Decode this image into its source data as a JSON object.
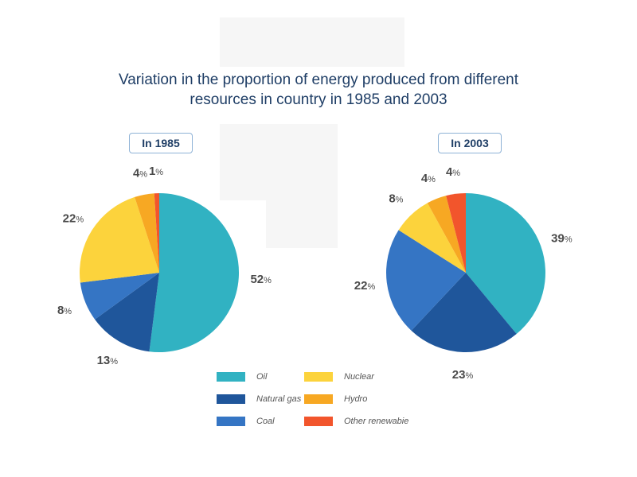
{
  "title": "Variation in the proportion of energy produced from different\nresources in country in 1985 and 2003",
  "chart_data": [
    {
      "type": "pie",
      "title": "In 1985",
      "categories": [
        "Oil",
        "Natural gas",
        "Coal",
        "Nuclear",
        "Hydro",
        "Other renewabie"
      ],
      "values": [
        52,
        13,
        8,
        22,
        4,
        1
      ],
      "unit": "%"
    },
    {
      "type": "pie",
      "title": "In 2003",
      "categories": [
        "Oil",
        "Natural gas",
        "Coal",
        "Nuclear",
        "Hydro",
        "Other renewabie"
      ],
      "values": [
        39,
        23,
        22,
        8,
        4,
        4
      ],
      "unit": "%"
    }
  ],
  "colors": [
    "#31b2c2",
    "#1f569b",
    "#3575c4",
    "#fcd33c",
    "#f7a823",
    "#f2552c"
  ],
  "legend": [
    {
      "label": "Oil"
    },
    {
      "label": "Natural gas"
    },
    {
      "label": "Coal"
    },
    {
      "label": "Nuclear"
    },
    {
      "label": "Hydro"
    },
    {
      "label": "Other renewabie"
    }
  ]
}
